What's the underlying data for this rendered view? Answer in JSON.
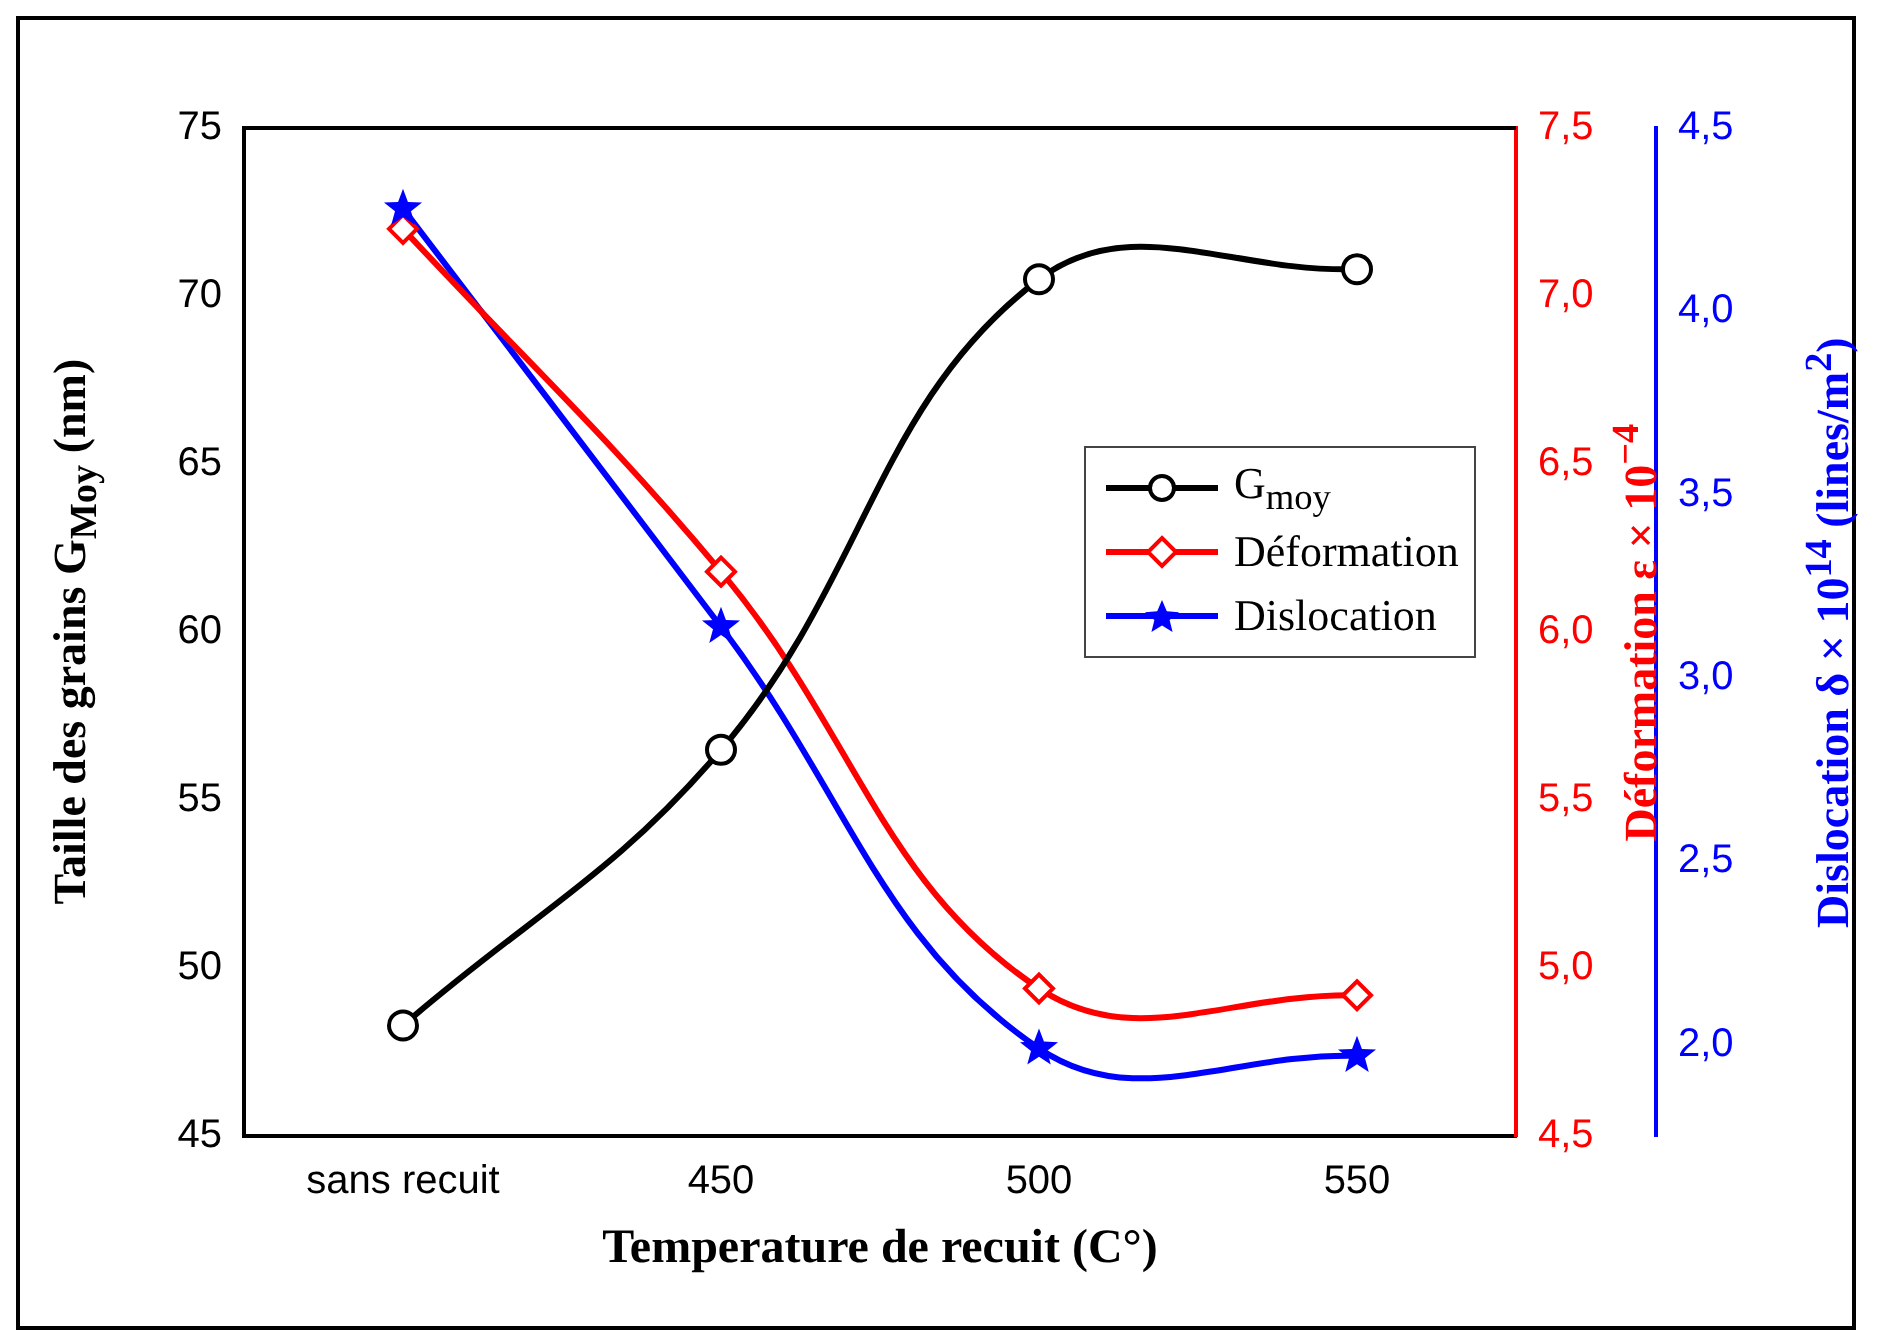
{
  "chart_data": {
    "type": "line",
    "xlabel": "Temperature de recuit (C°)",
    "ylabel": "Taille des grains G$_{Moy}$ (nm)",
    "y2label": "Déformation ε × 10$^{−4}$",
    "y3label": "Dislocation δ × 10$^{14}$ (lines/m$^{2}$)",
    "categories": [
      "sans recuit",
      "450",
      "500",
      "550"
    ],
    "ylim": [
      45,
      75
    ],
    "yticks": [
      45,
      50,
      55,
      60,
      65,
      70,
      75
    ],
    "y2lim": [
      4.5,
      7.5
    ],
    "y2ticks": [
      {
        "value": 4.5,
        "label": "4,5"
      },
      {
        "value": 5,
        "label": "5,0"
      },
      {
        "value": 5.5,
        "label": "5,5"
      },
      {
        "value": 6,
        "label": "6,0"
      },
      {
        "value": 6.5,
        "label": "6,5"
      },
      {
        "value": 7,
        "label": "7,0"
      },
      {
        "value": 7.5,
        "label": "7,5"
      }
    ],
    "y3lim": [
      1.75,
      4.5
    ],
    "y3ticks": [
      {
        "value": 2,
        "label": "2,0"
      },
      {
        "value": 2.5,
        "label": "2,5"
      },
      {
        "value": 3,
        "label": "3,0"
      },
      {
        "value": 3.5,
        "label": "3,5"
      },
      {
        "value": 4,
        "label": "4,0"
      },
      {
        "value": 4.5,
        "label": "4,5"
      }
    ],
    "series": [
      {
        "name": "G$_{moy}$",
        "color": "#000000",
        "marker": "circle",
        "values": [
          48.3,
          56.5,
          70.5,
          70.8
        ]
      },
      {
        "name": "Déformation",
        "color": "#ff0000",
        "marker": "diamond",
        "axis": "y2",
        "values": [
          7.2,
          6.18,
          4.94,
          4.92
        ]
      },
      {
        "name": "Dislocation",
        "color": "#0000ff",
        "marker": "star",
        "axis": "y3",
        "values": [
          4.28,
          3.14,
          1.99,
          1.97
        ]
      }
    ],
    "legend": "center right",
    "grid": false,
    "line_style": "solid"
  }
}
